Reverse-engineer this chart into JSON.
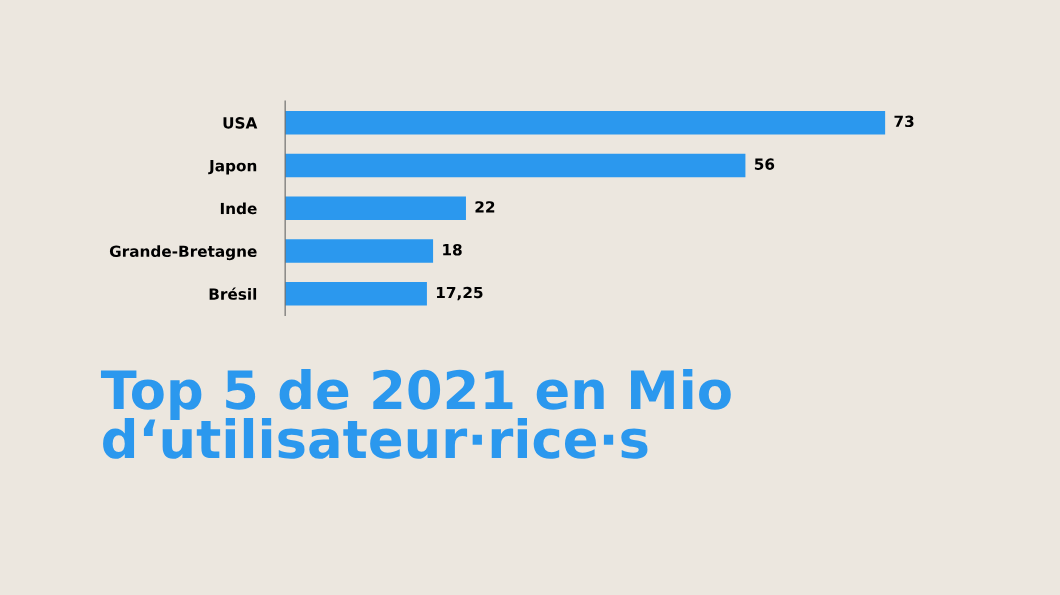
{
  "chart_data": {
    "type": "bar",
    "orientation": "horizontal",
    "title": "Top 5 de 2021 en Mio\nd‘utilisateur·rice·s",
    "categories": [
      "USA",
      "Japon",
      "Inde",
      "Grande-Bretagne",
      "Brésil"
    ],
    "values": [
      73,
      56,
      22,
      18,
      17.25
    ],
    "value_labels": [
      "73",
      "56",
      "22",
      "18",
      "17,25"
    ],
    "color": "#2b98ee"
  }
}
